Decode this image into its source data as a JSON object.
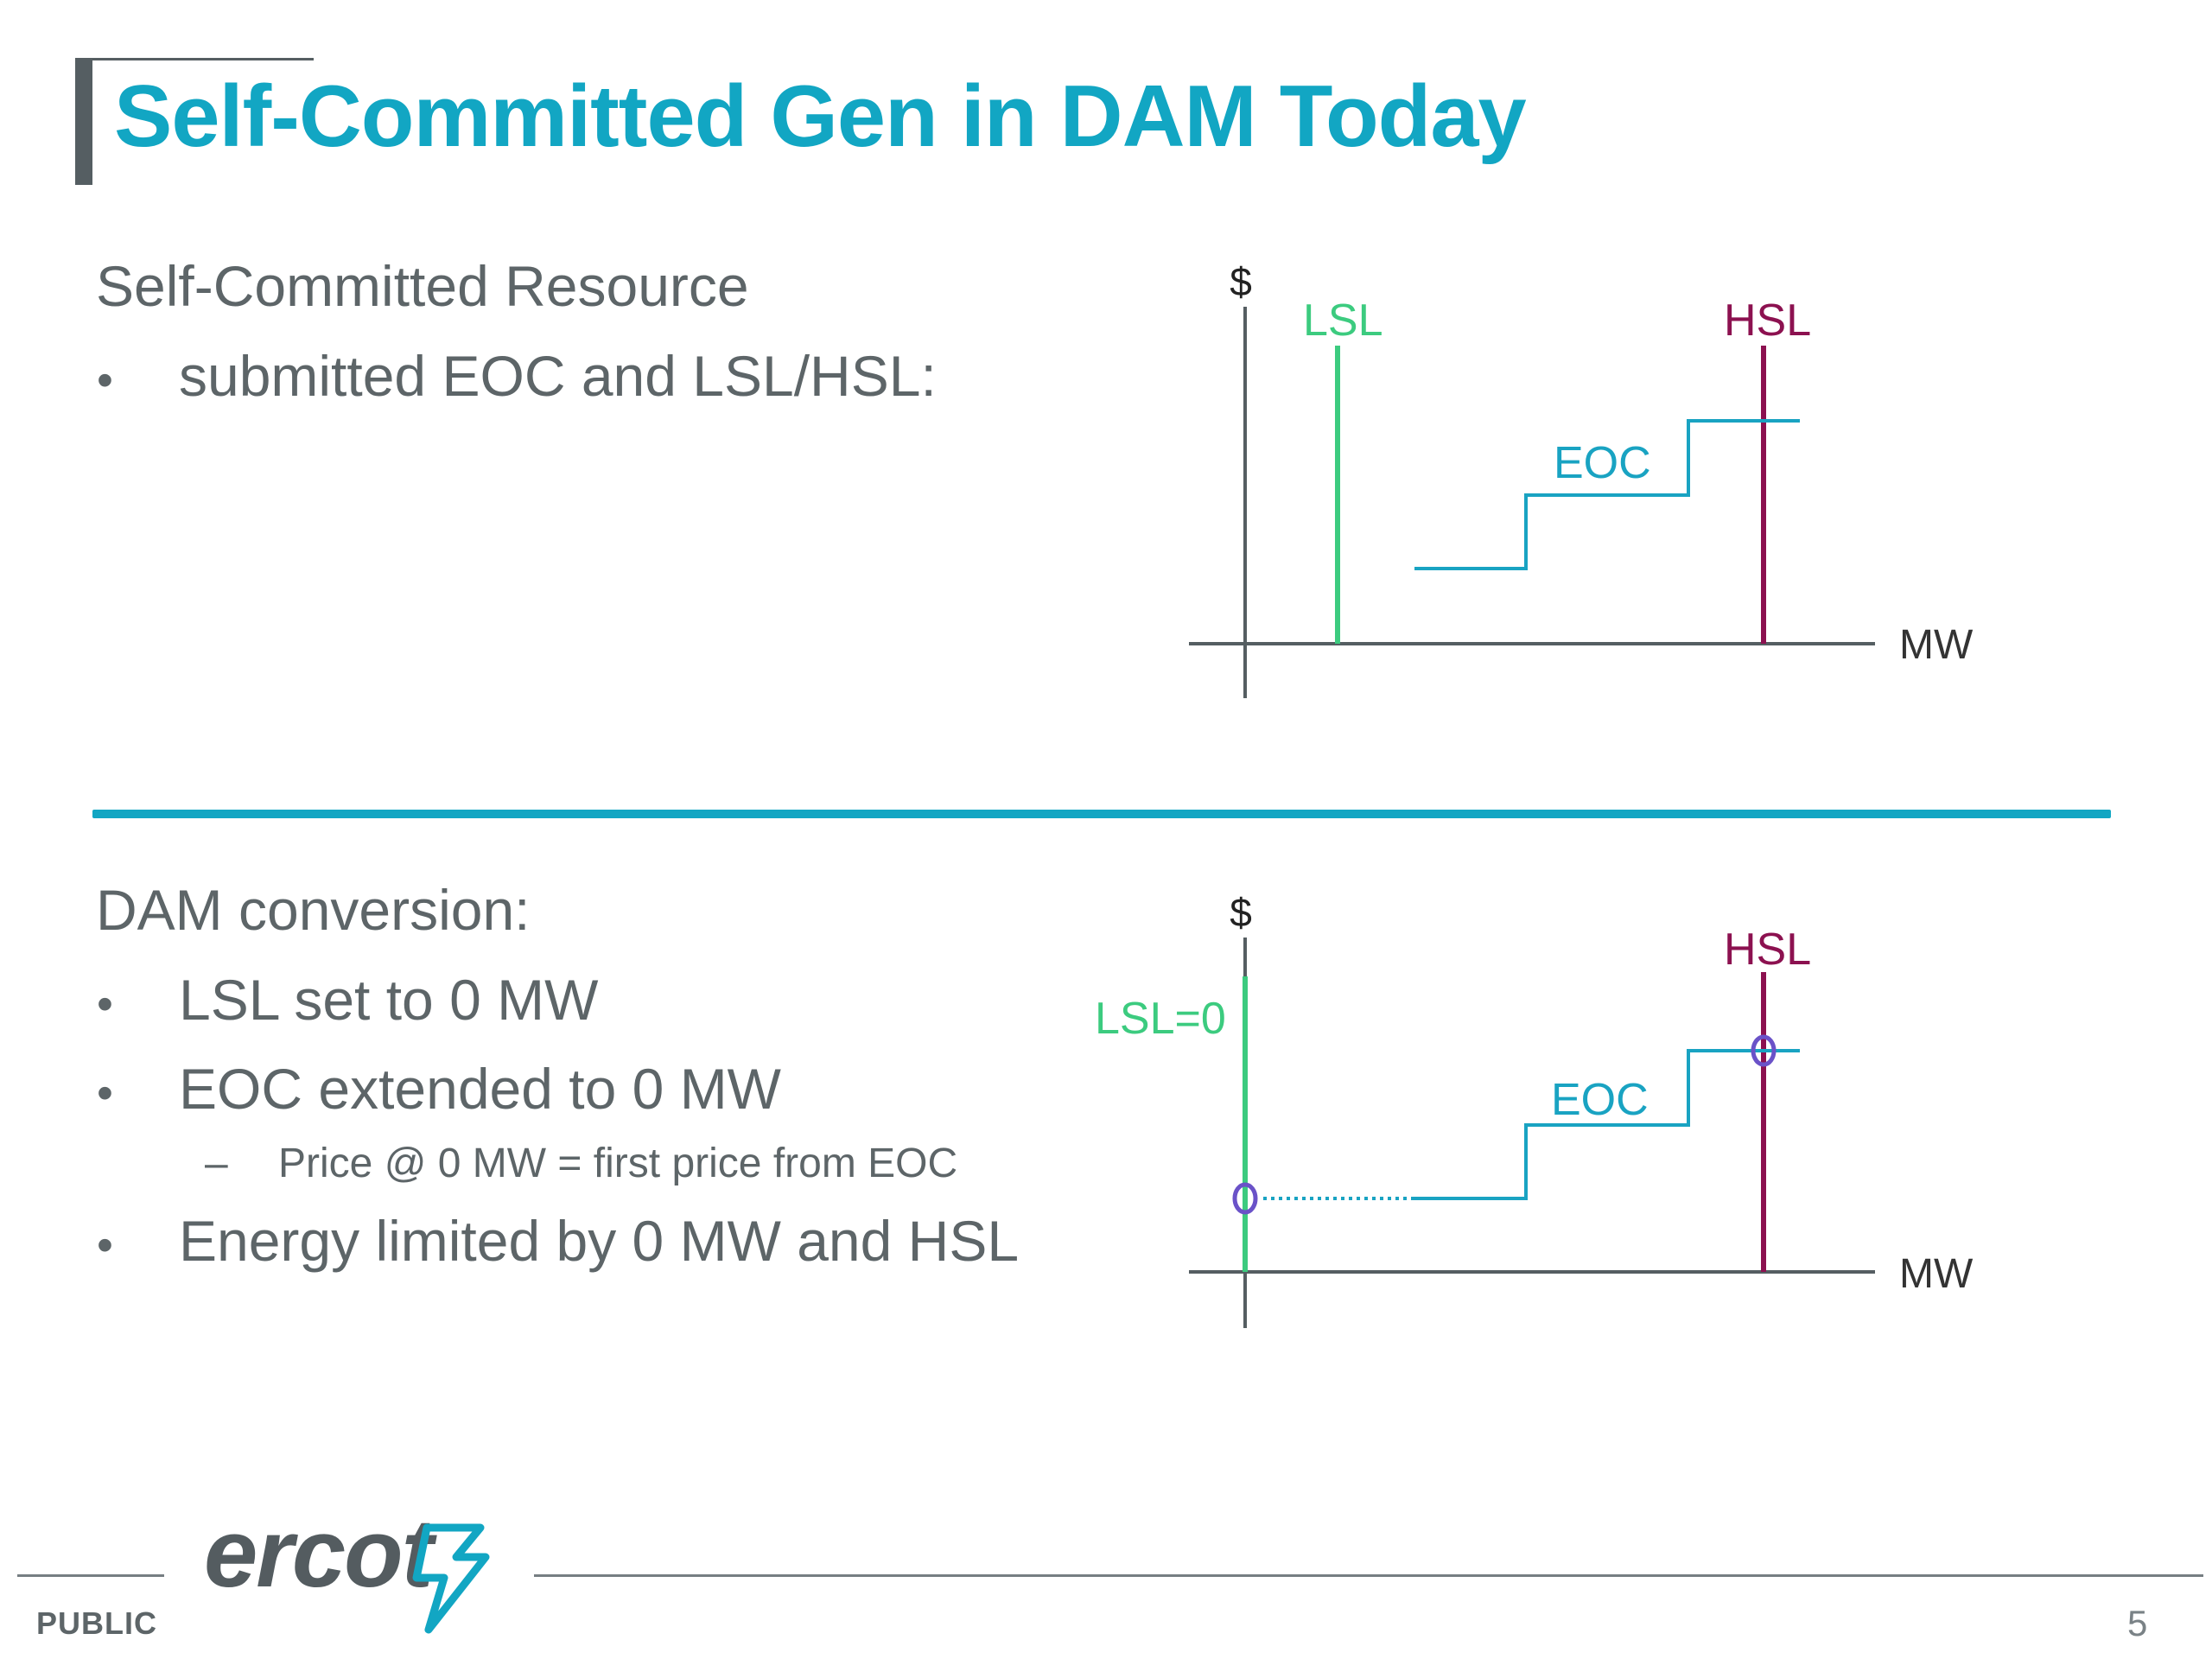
{
  "slide": {
    "title": "Self-Committed Gen in DAM Today",
    "page_number": "5",
    "classification": "PUBLIC",
    "logo_text": "ercot"
  },
  "section1": {
    "heading": "Self-Committed Resource",
    "bullets": [
      "submitted EOC and LSL/HSL:"
    ]
  },
  "section2": {
    "heading": "DAM conversion:",
    "bullets": [
      {
        "text": "LSL set to 0 MW",
        "sub": []
      },
      {
        "text": "EOC extended to 0 MW",
        "sub": [
          "Price @ 0 MW = first price from EOC"
        ]
      },
      {
        "text": "Energy limited by 0 MW and HSL",
        "sub": []
      }
    ]
  },
  "diagram1": {
    "y_label": "$",
    "x_label": "MW",
    "lsl_label": "LSL",
    "hsl_label": "HSL",
    "eoc_label": "EOC"
  },
  "diagram2": {
    "y_label": "$",
    "x_label": "MW",
    "lsl_label": "LSL=0",
    "hsl_label": "HSL",
    "eoc_label": "EOC"
  },
  "colors": {
    "title": "#12a6c3",
    "lsl": "#3ccb7f",
    "hsl": "#8c1150",
    "eoc": "#19a3c2",
    "axis": "#555e62",
    "marker": "#6a52c8"
  }
}
